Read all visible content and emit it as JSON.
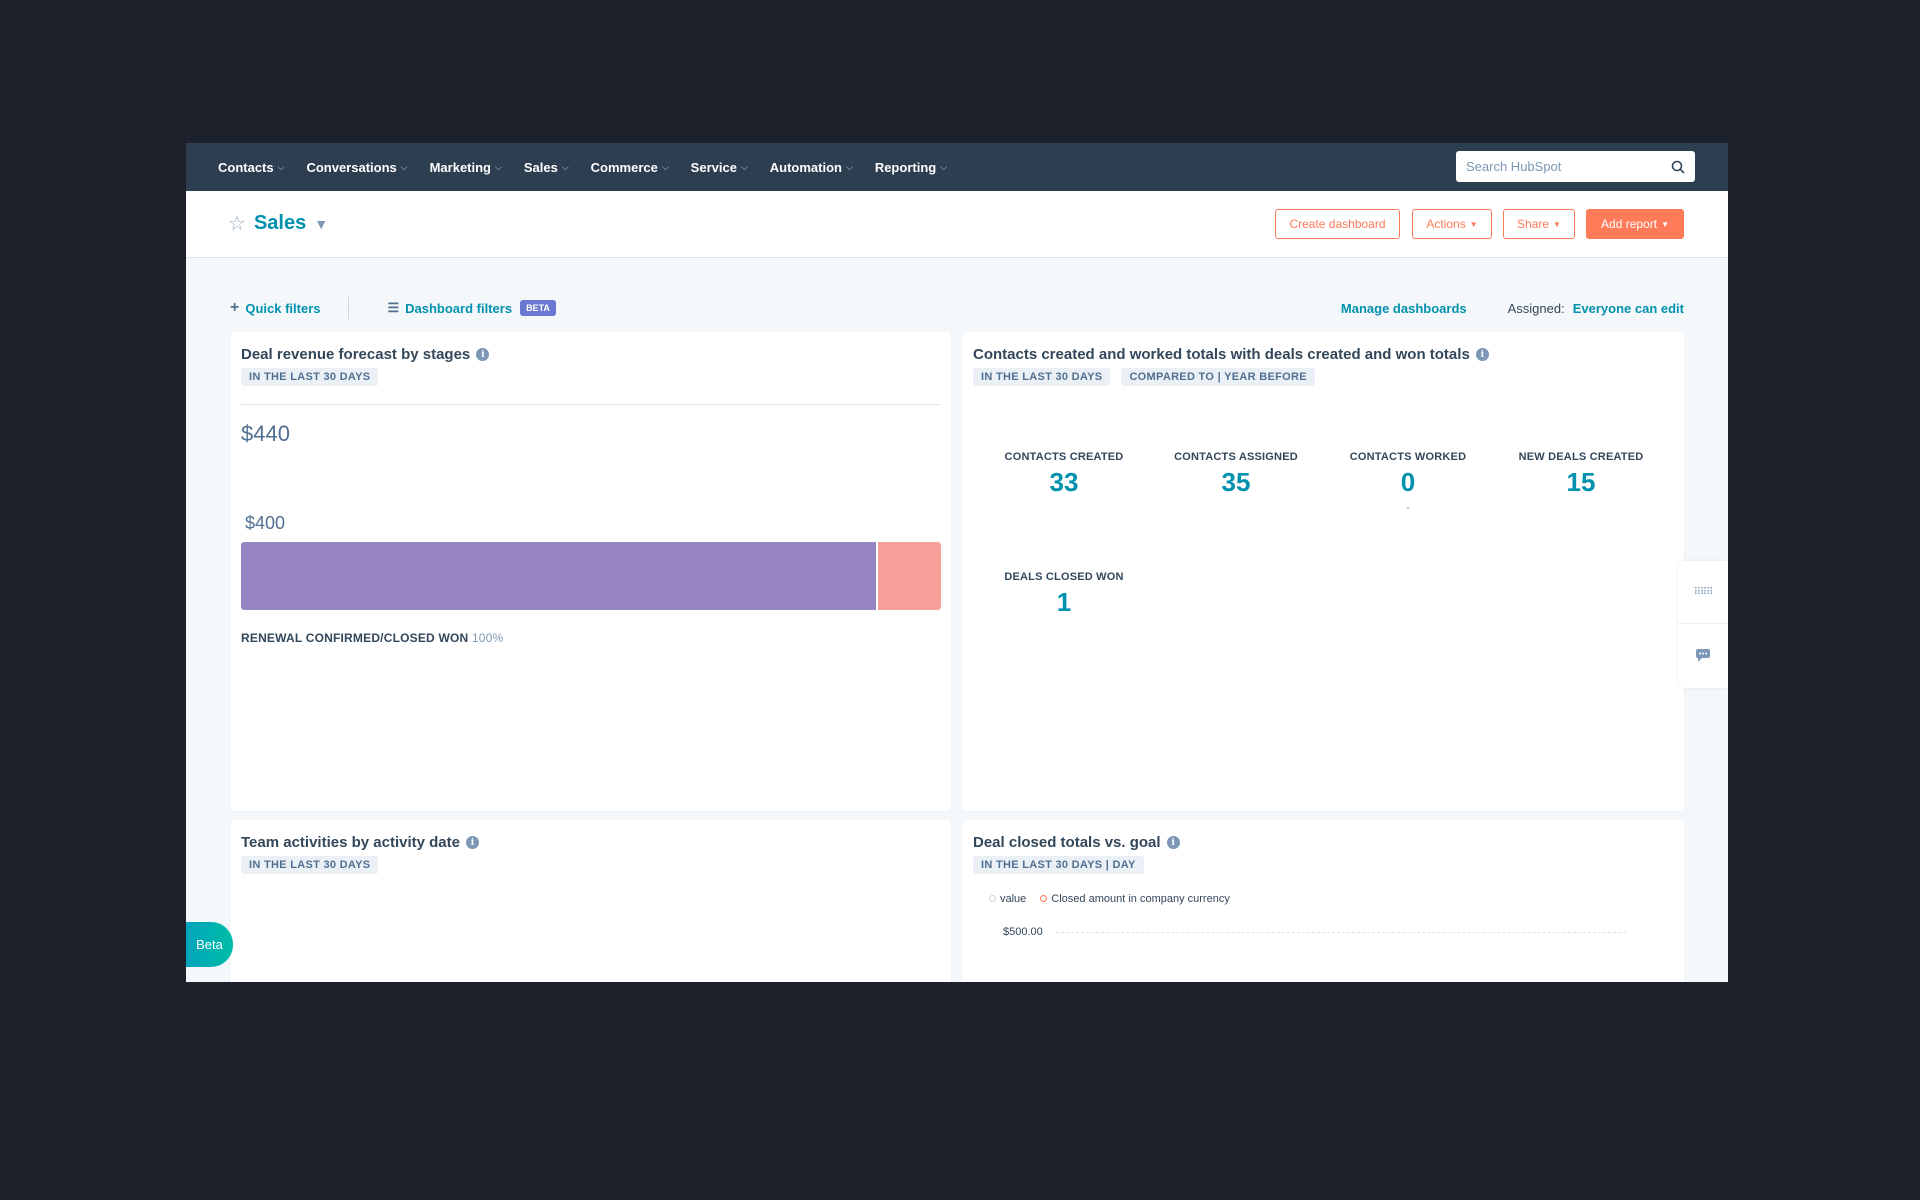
{
  "nav": {
    "items": [
      "Contacts",
      "Conversations",
      "Marketing",
      "Sales",
      "Commerce",
      "Service",
      "Automation",
      "Reporting"
    ],
    "search_placeholder": "Search HubSpot"
  },
  "header": {
    "title": "Sales",
    "buttons": {
      "create": "Create dashboard",
      "actions": "Actions",
      "share": "Share",
      "add_report": "Add report"
    }
  },
  "filters": {
    "quick": "Quick filters",
    "dashboard": "Dashboard filters",
    "beta": "BETA",
    "manage": "Manage dashboards",
    "assigned_label": "Assigned:",
    "assigned_value": "Everyone can edit"
  },
  "cards": {
    "revenue": {
      "title": "Deal revenue forecast by stages",
      "tags": [
        "IN THE LAST 30 DAYS"
      ],
      "total": "$440",
      "bar_label": "$400",
      "stage": "RENEWAL CONFIRMED/CLOSED WON",
      "stage_pct": "100%",
      "segments": [
        {
          "value": 400,
          "color": "#9784c2"
        },
        {
          "value": 40,
          "color": "#f8a09a"
        }
      ]
    },
    "contacts": {
      "title": "Contacts created and worked totals with deals created and won totals",
      "tags": [
        "IN THE LAST 30 DAYS",
        "COMPARED TO | YEAR BEFORE"
      ],
      "kpis": [
        {
          "label": "CONTACTS CREATED",
          "value": "33"
        },
        {
          "label": "CONTACTS ASSIGNED",
          "value": "35"
        },
        {
          "label": "CONTACTS WORKED",
          "value": "0",
          "sub": "-"
        },
        {
          "label": "NEW DEALS CREATED",
          "value": "15"
        },
        {
          "label": "DEALS CLOSED WON",
          "value": "1"
        }
      ]
    },
    "team": {
      "title": "Team activities by activity date",
      "tags": [
        "IN THE LAST 30 DAYS"
      ]
    },
    "goal": {
      "title": "Deal closed totals vs. goal",
      "tags": [
        "IN THE LAST 30 DAYS | DAY"
      ],
      "legend": [
        "value",
        "Closed amount in company currency"
      ],
      "y_tick": "$500.00"
    }
  },
  "beta_button": "Beta",
  "colors": {
    "accent": "#0091ae",
    "orange": "#ff7a59",
    "nav": "#2d3e50"
  }
}
